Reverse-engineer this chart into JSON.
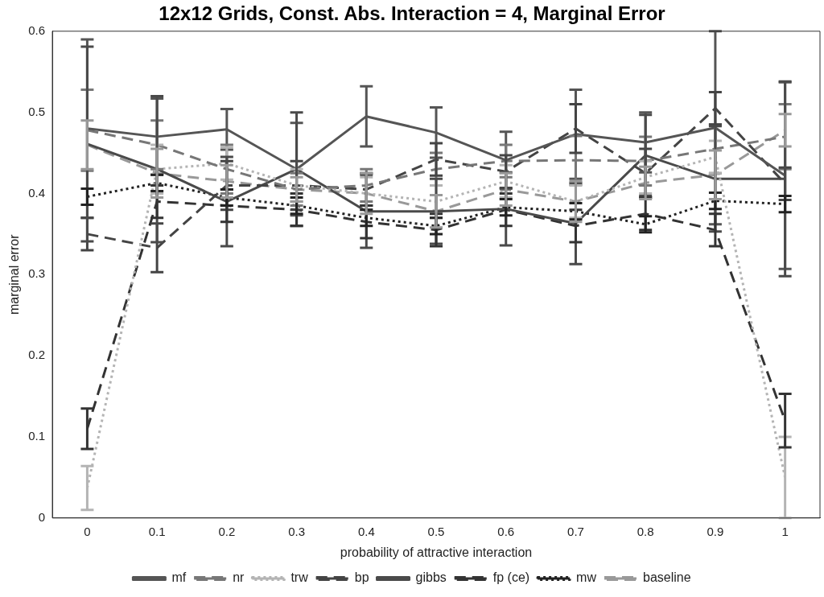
{
  "chart_data": {
    "type": "line",
    "title": "12x12 Grids, Const. Abs. Interaction = 4, Marginal Error",
    "xlabel": "probability of attractive interaction",
    "ylabel": "marginal error",
    "x": [
      0,
      0.1,
      0.2,
      0.3,
      0.4,
      0.5,
      0.6,
      0.7,
      0.8,
      0.9,
      1
    ],
    "xlim": [
      -0.05,
      1.05
    ],
    "xticks": [
      0,
      0.1,
      0.2,
      0.3,
      0.4,
      0.5,
      0.6,
      0.7,
      0.8,
      0.9,
      1
    ],
    "ylim": [
      0,
      0.6
    ],
    "yticks": [
      0,
      0.1,
      0.2,
      0.3,
      0.4,
      0.5,
      0.6
    ],
    "legend": "bottom",
    "marker": "none",
    "series": [
      {
        "name": "mf",
        "color": "#555555",
        "line_style": "solid",
        "values": [
          0.48,
          0.47,
          0.479,
          0.43,
          0.495,
          0.475,
          0.441,
          0.473,
          0.463,
          0.481,
          0.422
        ],
        "errors": [
          0.11,
          0.047,
          0.025,
          0.057,
          0.037,
          0.031,
          0.035,
          0.055,
          0.037,
          0.119,
          0.115
        ]
      },
      {
        "name": "nr",
        "color": "#777777",
        "line_style": "dashed",
        "values": [
          0.478,
          0.46,
          0.43,
          0.405,
          0.41,
          0.43,
          0.44,
          0.441,
          0.44,
          0.455,
          0.47
        ],
        "errors": [
          0.05,
          0.03,
          0.03,
          0.02,
          0.02,
          0.02,
          0.02,
          0.03,
          0.03,
          0.03,
          0.04
        ]
      },
      {
        "name": "trw",
        "color": "#b4b4b4",
        "line_style": "dotted",
        "values": [
          0.037,
          0.43,
          0.437,
          0.41,
          0.4,
          0.39,
          0.415,
          0.39,
          0.42,
          0.445,
          0.05
        ],
        "errors": [
          0.027,
          0.03,
          0.02,
          0.02,
          0.02,
          0.02,
          0.02,
          0.02,
          0.02,
          0.02,
          0.05
        ]
      },
      {
        "name": "bp",
        "color": "#444444",
        "line_style": "dashed",
        "values": [
          0.35,
          0.333,
          0.41,
          0.41,
          0.405,
          0.442,
          0.427,
          0.48,
          0.425,
          0.505,
          0.412
        ],
        "errors": [
          0.02,
          0.03,
          0.03,
          0.03,
          0.02,
          0.02,
          0.02,
          0.03,
          0.03,
          0.02,
          0.02
        ]
      },
      {
        "name": "gibbs",
        "color": "#4a4a4a",
        "line_style": "solid",
        "values": [
          0.461,
          0.43,
          0.39,
          0.43,
          0.378,
          0.378,
          0.381,
          0.363,
          0.447,
          0.418,
          0.418
        ],
        "errors": [
          0.12,
          0.09,
          0.055,
          0.07,
          0.045,
          0.04,
          0.045,
          0.05,
          0.05,
          0.065,
          0.12
        ]
      },
      {
        "name": "fp (ce)",
        "color": "#333333",
        "line_style": "dashed",
        "values": [
          0.11,
          0.39,
          0.385,
          0.38,
          0.365,
          0.355,
          0.38,
          0.36,
          0.375,
          0.355,
          0.12
        ],
        "errors": [
          0.025,
          0.02,
          0.02,
          0.02,
          0.02,
          0.02,
          0.02,
          0.02,
          0.02,
          0.02,
          0.033
        ]
      },
      {
        "name": "mw",
        "color": "#222222",
        "line_style": "dotted",
        "values": [
          0.396,
          0.413,
          0.395,
          0.385,
          0.37,
          0.36,
          0.383,
          0.378,
          0.362,
          0.391,
          0.387
        ],
        "errors": [
          0.01,
          0.01,
          0.01,
          0.01,
          0.01,
          0.01,
          0.01,
          0.01,
          0.01,
          0.01,
          0.01
        ]
      },
      {
        "name": "baseline",
        "color": "#999999",
        "line_style": "dashed",
        "values": [
          0.46,
          0.425,
          0.415,
          0.405,
          0.4,
          0.378,
          0.405,
          0.39,
          0.413,
          0.423,
          0.478
        ],
        "errors": [
          0.03,
          0.03,
          0.02,
          0.015,
          0.025,
          0.02,
          0.02,
          0.025,
          0.02,
          0.03,
          0.02
        ]
      }
    ]
  }
}
